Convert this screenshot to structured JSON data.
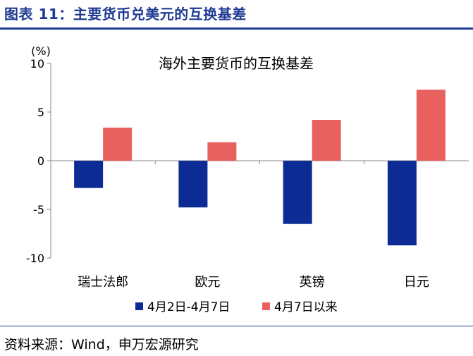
{
  "figure": {
    "heading": "图表 11：主要货币兑美元的互换基差",
    "source": "资料来源：Wind，申万宏源研究"
  },
  "colors": {
    "heading": "#1f3a93",
    "series1": "#0d2b94",
    "series2": "#e8615f"
  },
  "chart_data": {
    "type": "bar",
    "title": "海外主要货币的互换基差",
    "ylabel": "(%)",
    "xlabel": "",
    "categories": [
      "瑞士法郎",
      "欧元",
      "英镑",
      "日元"
    ],
    "series": [
      {
        "name": "4月2日-4月7日",
        "values": [
          -2.8,
          -4.8,
          -6.5,
          -8.7
        ]
      },
      {
        "name": "4月7日以来",
        "values": [
          3.4,
          1.9,
          4.2,
          7.3
        ]
      }
    ],
    "ylim": [
      -10,
      10
    ],
    "yticks": [
      "10",
      "5",
      "0",
      "-5",
      "-10"
    ],
    "ytick_values": [
      10,
      5,
      0,
      -5,
      -10
    ],
    "grid": false,
    "legend_position": "bottom"
  }
}
